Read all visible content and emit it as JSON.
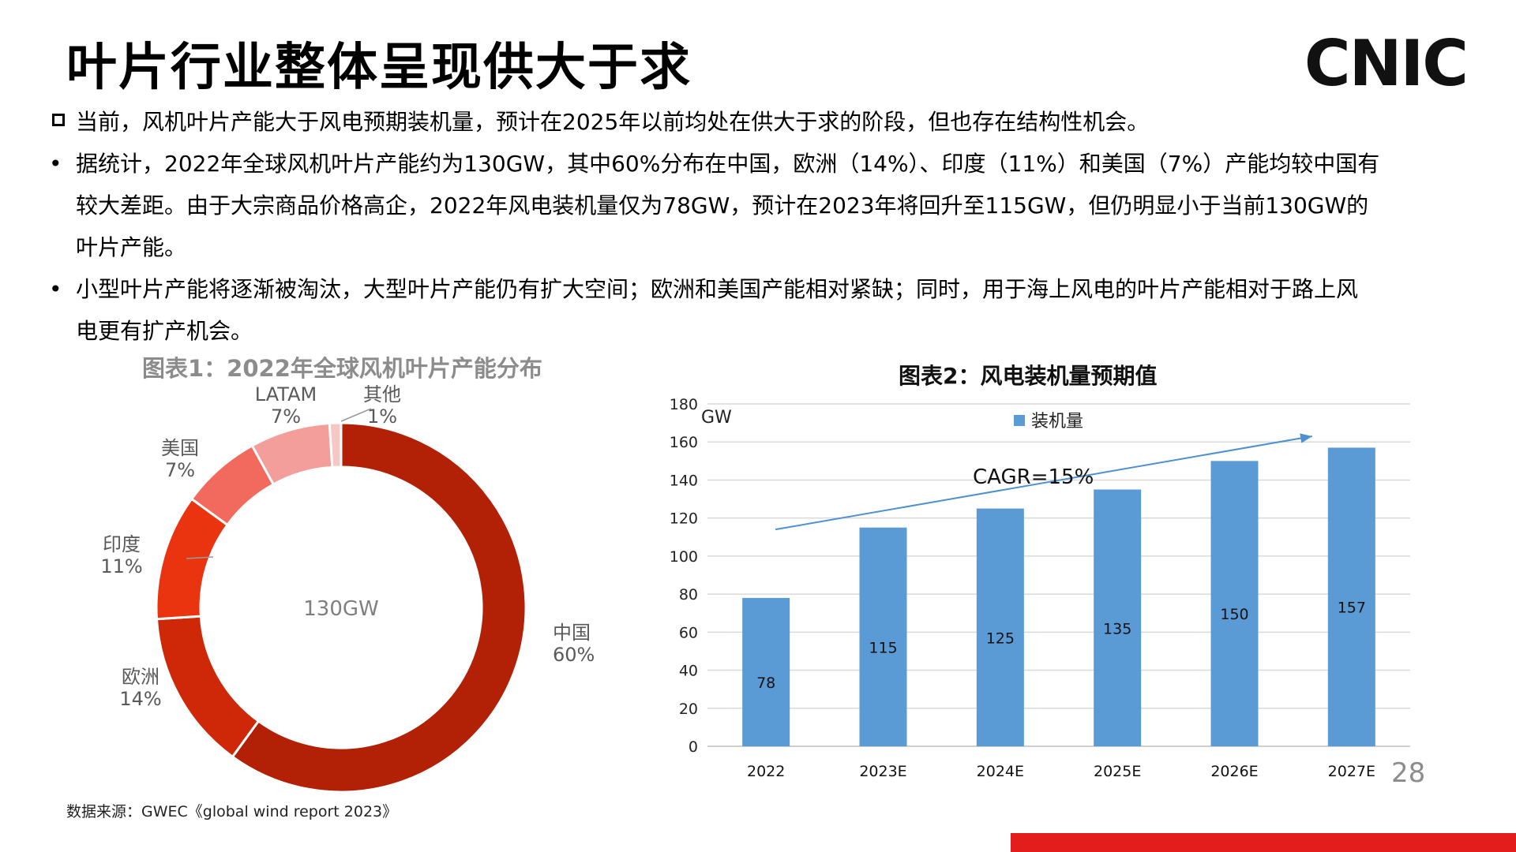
{
  "slide": {
    "title": "叶片行业整体呈现供大于求",
    "logo": "CNIC",
    "page_number": "28",
    "source": "数据来源：GWEC《global wind report 2023》",
    "accent_color": "#e31d1c"
  },
  "bullets": {
    "main": "当前，风机叶片产能大于风电预期装机量，预计在2025年以前均处在供大于求的阶段，但也存在结构性机会。",
    "sub1": [
      "据统计，2022年全球风机叶片产能约为130GW，其中60%分布在中国，欧洲（14%）、印度（11%）和美国（7%）产能均较中国有",
      "较大差距。由于大宗商品价格高企，2022年风电装机量仅为78GW，预计在2023年将回升至115GW，但仍明显小于当前130GW的",
      "叶片产能。"
    ],
    "sub2": [
      "小型叶片产能将逐渐被淘汰，大型叶片产能仍有扩大空间；欧洲和美国产能相对紧缺；同时，用于海上风电的叶片产能相对于路上风",
      "电更有扩产机会。"
    ]
  },
  "chart_data": [
    {
      "type": "pie",
      "title": "图表1：2022年全球风机叶片产能分布",
      "center_label": "130GW",
      "slices": [
        {
          "name": "中国",
          "value": 60,
          "label": "60%",
          "color": "#b22006"
        },
        {
          "name": "欧洲",
          "value": 14,
          "label": "14%",
          "color": "#cf2808"
        },
        {
          "name": "印度",
          "value": 11,
          "label": "11%",
          "color": "#ea330f"
        },
        {
          "name": "美国",
          "value": 7,
          "label": "7%",
          "color": "#f2695d"
        },
        {
          "name": "LATAM",
          "value": 7,
          "label": "7%",
          "color": "#f39e9a"
        },
        {
          "name": "其他",
          "value": 1,
          "label": "1%",
          "color": "#f6c8c5"
        }
      ]
    },
    {
      "type": "bar",
      "title": "图表2：风电装机量预期值",
      "ylabel": "GW",
      "ylim": [
        0,
        180
      ],
      "yticks": [
        0,
        20,
        40,
        60,
        80,
        100,
        120,
        140,
        160,
        180
      ],
      "grid": true,
      "legend": "top-center",
      "categories": [
        "2022",
        "2023E",
        "2024E",
        "2025E",
        "2026E",
        "2027E"
      ],
      "series": [
        {
          "name": "装机量",
          "values": [
            78,
            115,
            125,
            135,
            150,
            157
          ],
          "color": "#5b9bd5"
        }
      ],
      "annotation": "CAGR=15%"
    }
  ]
}
